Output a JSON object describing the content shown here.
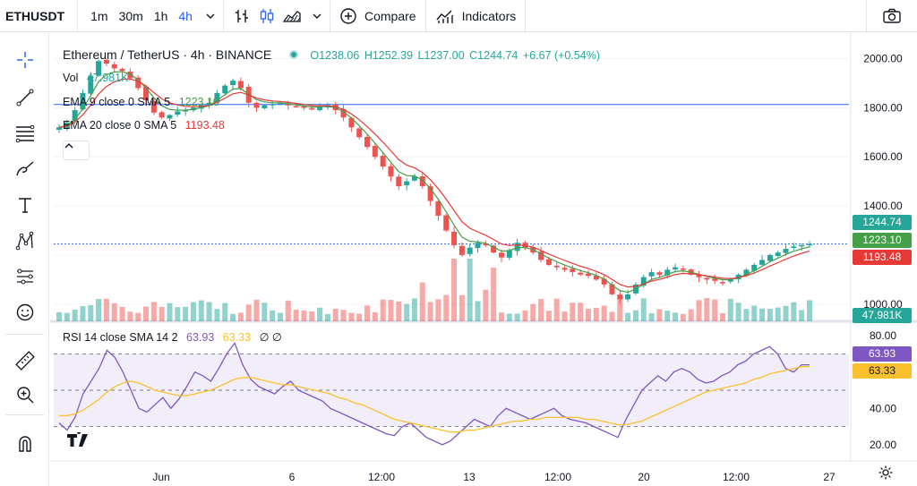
{
  "toolbar": {
    "symbol": "ETHUSDT",
    "intervals": [
      "1m",
      "30m",
      "1h",
      "4h"
    ],
    "active_interval": "4h",
    "compare_label": "Compare",
    "indicators_label": "Indicators"
  },
  "legend": {
    "title": "Ethereum / TetherUS · 4h · BINANCE",
    "open": "O1238.06",
    "high": "H1252.39",
    "low": "L1237.00",
    "close": "C1244.74",
    "change": "+6.67 (+0.54%)",
    "vol_label": "Vol",
    "vol_value": "47.981K",
    "ema9_label": "EMA 9 close 0 SMA 5",
    "ema9_value": "1223.10",
    "ema20_label": "EMA 20 close 0 SMA 5",
    "ema20_value": "1193.48",
    "rsi_label": "RSI 14 close SMA 14 2",
    "rsi_value": "63.93",
    "rsi_sma_value": "63.33",
    "rsi_extra": "∅ ∅"
  },
  "price_tags": {
    "last": "1244.74",
    "ema9": "1223.10",
    "ema20": "1193.48",
    "volume": "47.981K",
    "rsi": "63.93",
    "rsi_sma": "63.33"
  },
  "colors": {
    "up": "#26a69a",
    "down": "#ef5350",
    "ema9": "#43a047",
    "ema20": "#e53935",
    "rsi": "#7e57c2",
    "rsi_sma": "#fbc02d",
    "hline": "#2962ff",
    "accent": "#2962ff"
  },
  "chart_data": [
    {
      "type": "candlestick",
      "title": "Ethereum / TetherUS · 4h · BINANCE",
      "y_ticks": [
        2000,
        1800,
        1600,
        1400,
        1200,
        1000
      ],
      "ylim": [
        930,
        2060
      ],
      "x_tick_labels": [
        "Jun",
        "6",
        "12:00",
        "13",
        "12:00",
        "20",
        "12:00",
        "27"
      ],
      "horizontal_line": 1813,
      "last_price": 1244.74,
      "close_path": [
        1720,
        1740,
        1790,
        1860,
        1930,
        1990,
        1980,
        1960,
        1950,
        1920,
        1880,
        1830,
        1780,
        1760,
        1770,
        1785,
        1790,
        1800,
        1810,
        1820,
        1860,
        1890,
        1910,
        1880,
        1820,
        1800,
        1810,
        1815,
        1820,
        1810,
        1805,
        1800,
        1795,
        1805,
        1810,
        1790,
        1760,
        1720,
        1680,
        1640,
        1600,
        1560,
        1520,
        1480,
        1500,
        1520,
        1480,
        1420,
        1360,
        1300,
        1240,
        1200,
        1230,
        1250,
        1240,
        1210,
        1190,
        1220,
        1250,
        1230,
        1210,
        1180,
        1160,
        1150,
        1140,
        1130,
        1120,
        1115,
        1100,
        1080,
        1040,
        1020,
        1040,
        1080,
        1110,
        1130,
        1120,
        1140,
        1150,
        1140,
        1120,
        1110,
        1100,
        1095,
        1090,
        1100,
        1120,
        1140,
        1160,
        1180,
        1200,
        1210,
        1225,
        1235,
        1240,
        1245
      ],
      "series": [
        {
          "name": "EMA 9 close 0 SMA 5",
          "last": 1223.1
        },
        {
          "name": "EMA 20 close 0 SMA 5",
          "last": 1193.48
        }
      ]
    },
    {
      "type": "line",
      "title": "RSI 14 close SMA 14 2",
      "y_ticks": [
        80,
        60,
        40,
        20
      ],
      "ylim": [
        15,
        85
      ],
      "bands": [
        30,
        50,
        70
      ],
      "series": [
        {
          "name": "RSI",
          "values": [
            32,
            28,
            35,
            48,
            55,
            62,
            72,
            68,
            60,
            50,
            40,
            38,
            42,
            46,
            40,
            45,
            52,
            60,
            58,
            55,
            62,
            70,
            76,
            64,
            56,
            52,
            50,
            48,
            52,
            55,
            50,
            48,
            46,
            44,
            40,
            38,
            36,
            34,
            32,
            30,
            28,
            26,
            25,
            30,
            32,
            28,
            24,
            22,
            20,
            22,
            26,
            30,
            34,
            32,
            30,
            36,
            40,
            38,
            36,
            34,
            36,
            38,
            40,
            36,
            34,
            33,
            32,
            30,
            28,
            26,
            24,
            34,
            42,
            50,
            54,
            58,
            55,
            60,
            62,
            60,
            56,
            54,
            55,
            58,
            60,
            64,
            66,
            70,
            72,
            74,
            70,
            62,
            60,
            64,
            64
          ]
        },
        {
          "name": "SMA",
          "values": [
            36,
            36,
            37,
            39,
            42,
            45,
            49,
            52,
            54,
            55,
            54,
            52,
            50,
            49,
            48,
            47,
            47,
            48,
            49,
            50,
            52,
            54,
            56,
            57,
            57,
            56,
            55,
            54,
            53,
            53,
            52,
            51,
            50,
            49,
            48,
            46,
            45,
            43,
            42,
            40,
            38,
            36,
            34,
            33,
            32,
            31,
            30,
            29,
            28,
            27,
            27,
            28,
            28,
            29,
            30,
            31,
            32,
            33,
            33,
            34,
            34,
            35,
            35,
            35,
            35,
            35,
            34,
            34,
            33,
            32,
            31,
            31,
            32,
            33,
            35,
            37,
            39,
            41,
            43,
            45,
            47,
            49,
            50,
            51,
            52,
            53,
            54,
            56,
            57,
            59,
            60,
            61,
            62,
            63,
            63
          ]
        }
      ]
    }
  ]
}
